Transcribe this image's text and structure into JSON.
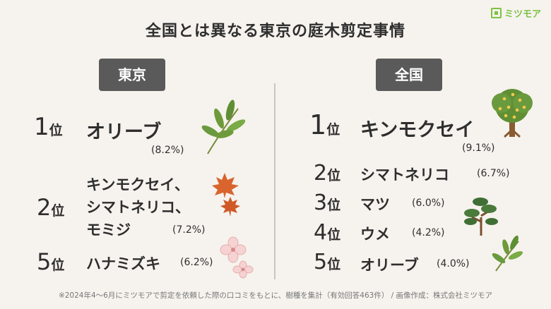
{
  "title": "全国とは異なる東京の庭木剪定事情",
  "logo": {
    "text": "ミツモア"
  },
  "tokyo": {
    "header": "東京",
    "entries": [
      {
        "rank": "1",
        "suffix": "位",
        "name": "オリーブ",
        "percent": "(8.2%)"
      },
      {
        "rank": "2",
        "suffix": "位",
        "name_lines": [
          "キンモクセイ、",
          "シマトネリコ、",
          "モミジ"
        ],
        "percent": "(7.2%)"
      },
      {
        "rank": "5",
        "suffix": "位",
        "name": "ハナミズキ",
        "percent": "(6.2%)"
      }
    ]
  },
  "national": {
    "header": "全国",
    "entries": [
      {
        "rank": "1",
        "suffix": "位",
        "name": "キンモクセイ",
        "percent": "(9.1%)"
      },
      {
        "rank": "2",
        "suffix": "位",
        "name": "シマトネリコ",
        "percent": "(6.7%)"
      },
      {
        "rank": "3",
        "suffix": "位",
        "name": "マツ",
        "percent": "(6.0%)"
      },
      {
        "rank": "4",
        "suffix": "位",
        "name": "ウメ",
        "percent": "(4.2%)"
      },
      {
        "rank": "5",
        "suffix": "位",
        "name": "オリーブ",
        "percent": "(4.0%)"
      }
    ]
  },
  "footnote": "※2024年4〜6月にミツモアで剪定を依頼した際の口コミをもとに、樹種を集計（有効回答463件） / 画像作成：株式会社ミツモア",
  "colors": {
    "header_bg": "#5a5a5a",
    "background": "#f6f3ee",
    "brand": "#7cc243"
  },
  "icons": [
    "olive-branch-icon",
    "maple-leaf-icon",
    "dogwood-flower-icon",
    "osmanthus-tree-icon",
    "pine-tree-icon",
    "plum-branch-icon"
  ]
}
